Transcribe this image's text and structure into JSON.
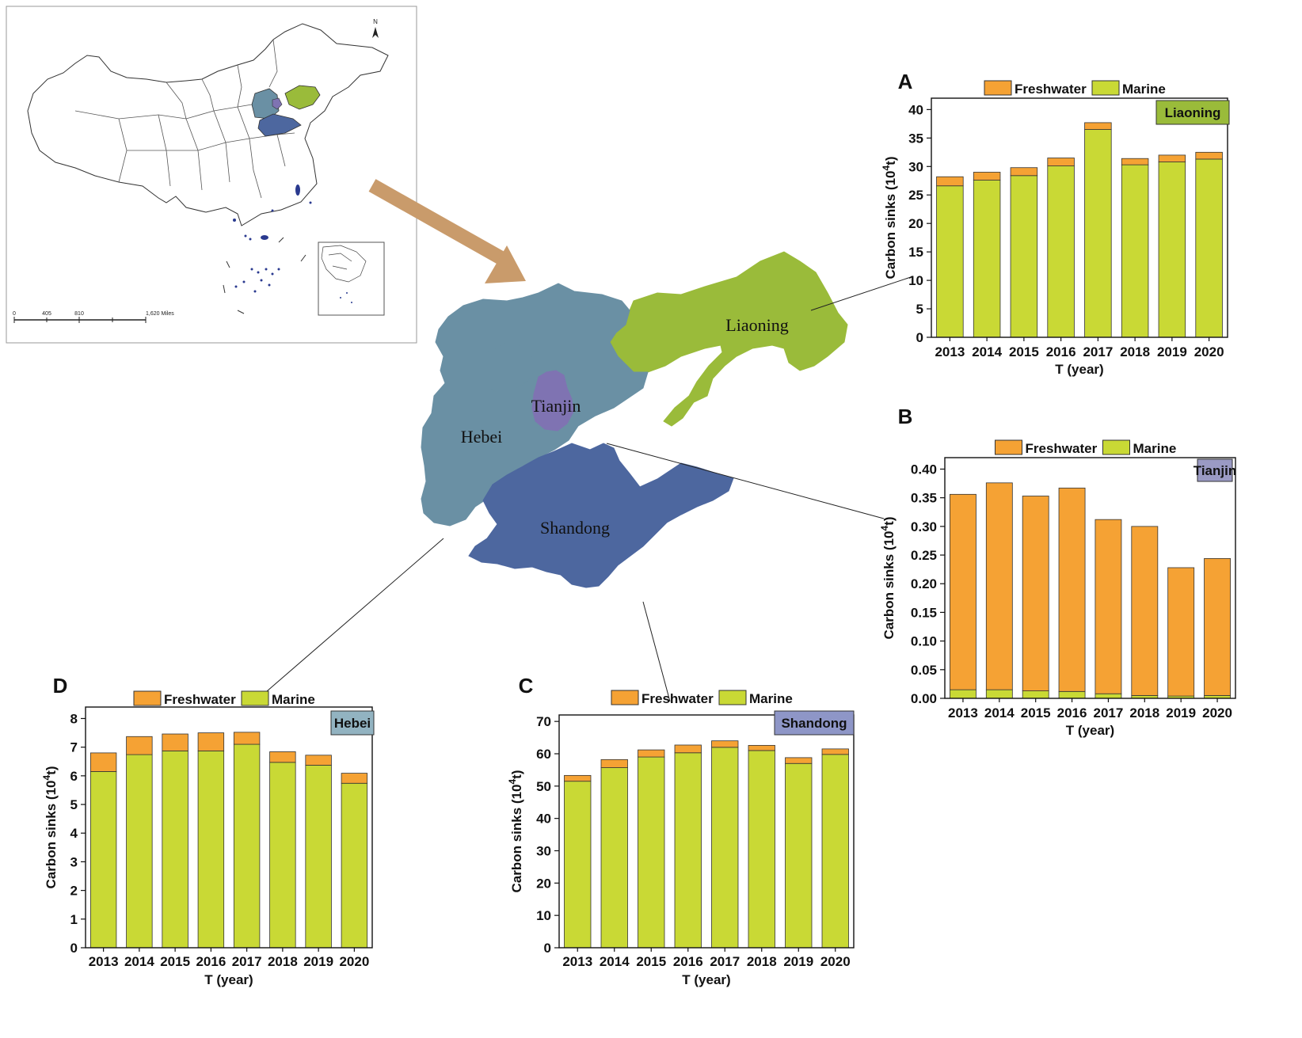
{
  "colors": {
    "freshwater": "#F5A234",
    "marine": "#C9D935",
    "liaoning": "#9ABB3A",
    "hebei": "#6A90A4",
    "tianjin": "#7F73B2",
    "shandong": "#4D679F",
    "arrow": "#C99B6B",
    "tag_liaoning": "#9ABB3A",
    "tag_tianjin": "#9A9AC4",
    "tag_shandong": "#8E96C7",
    "tag_hebei": "#92B3C1",
    "inset_islands": "#2A3A8F"
  },
  "overview_map": {
    "north_label": "N",
    "scale_labels": [
      "0",
      "405",
      "810",
      "1,620 Miles"
    ]
  },
  "region_map": {
    "labels": {
      "liaoning": "Liaoning",
      "hebei": "Hebei",
      "tianjin": "Tianjin",
      "shandong": "Shandong"
    }
  },
  "chart_data": [
    {
      "panel": "A",
      "type": "bar",
      "stacked": true,
      "region_tag": "Liaoning",
      "categories": [
        "2013",
        "2014",
        "2015",
        "2016",
        "2017",
        "2018",
        "2019",
        "2020"
      ],
      "series": [
        {
          "name": "Marine",
          "values": [
            26.6,
            27.6,
            28.4,
            30.1,
            36.5,
            30.3,
            30.8,
            31.3
          ]
        },
        {
          "name": "Freshwater",
          "values": [
            1.6,
            1.4,
            1.4,
            1.4,
            1.2,
            1.1,
            1.2,
            1.2
          ]
        }
      ],
      "legend": [
        "Freshwater",
        "Marine"
      ],
      "xlabel": "T (year)",
      "ylabel": "Carbon sinks (10",
      "ylabel_sup": "4",
      "ylabel_end": "t)",
      "ylim": [
        0,
        42
      ],
      "yticks": [
        "0",
        "5",
        "10",
        "15",
        "20",
        "25",
        "30",
        "35",
        "40"
      ]
    },
    {
      "panel": "B",
      "type": "bar",
      "stacked": true,
      "region_tag": "Tianjin",
      "categories": [
        "2013",
        "2014",
        "2015",
        "2016",
        "2017",
        "2018",
        "2019",
        "2020"
      ],
      "series": [
        {
          "name": "Marine",
          "values": [
            0.015,
            0.015,
            0.013,
            0.012,
            0.008,
            0.005,
            0.004,
            0.005
          ]
        },
        {
          "name": "Freshwater",
          "values": [
            0.341,
            0.361,
            0.34,
            0.355,
            0.304,
            0.295,
            0.224,
            0.239
          ]
        }
      ],
      "legend": [
        "Freshwater",
        "Marine"
      ],
      "xlabel": "T (year)",
      "ylabel": "Carbon sinks (10",
      "ylabel_sup": "4",
      "ylabel_end": "t)",
      "ylim": [
        0,
        0.42
      ],
      "yticks": [
        "0.00",
        "0.05",
        "0.10",
        "0.15",
        "0.20",
        "0.25",
        "0.30",
        "0.35",
        "0.40"
      ]
    },
    {
      "panel": "C",
      "type": "bar",
      "stacked": true,
      "region_tag": "Shandong",
      "categories": [
        "2013",
        "2014",
        "2015",
        "2016",
        "2017",
        "2018",
        "2019",
        "2020"
      ],
      "series": [
        {
          "name": "Marine",
          "values": [
            51.5,
            55.7,
            59.0,
            60.3,
            62.0,
            61.0,
            57.0,
            59.8
          ]
        },
        {
          "name": "Freshwater",
          "values": [
            1.8,
            2.5,
            2.2,
            2.4,
            2.0,
            1.6,
            1.8,
            1.7
          ]
        }
      ],
      "legend": [
        "Freshwater",
        "Marine"
      ],
      "xlabel": "T (year)",
      "ylabel": "Carbon sinks (10",
      "ylabel_sup": "4",
      "ylabel_end": "t)",
      "ylim": [
        0,
        72
      ],
      "yticks": [
        "0",
        "10",
        "20",
        "30",
        "40",
        "50",
        "60",
        "70"
      ]
    },
    {
      "panel": "D",
      "type": "bar",
      "stacked": true,
      "region_tag": "Hebei",
      "categories": [
        "2013",
        "2014",
        "2015",
        "2016",
        "2017",
        "2018",
        "2019",
        "2020"
      ],
      "series": [
        {
          "name": "Marine",
          "values": [
            6.15,
            6.74,
            6.87,
            6.87,
            7.1,
            6.47,
            6.37,
            5.74
          ]
        },
        {
          "name": "Freshwater",
          "values": [
            0.65,
            0.63,
            0.59,
            0.63,
            0.42,
            0.37,
            0.35,
            0.35
          ]
        }
      ],
      "legend": [
        "Freshwater",
        "Marine"
      ],
      "xlabel": "T (year)",
      "ylabel": "Carbon sinks (10",
      "ylabel_sup": "4",
      "ylabel_end": "t)",
      "ylim": [
        0,
        8.4
      ],
      "yticks": [
        "0",
        "1",
        "2",
        "3",
        "4",
        "5",
        "6",
        "7",
        "8"
      ]
    }
  ]
}
